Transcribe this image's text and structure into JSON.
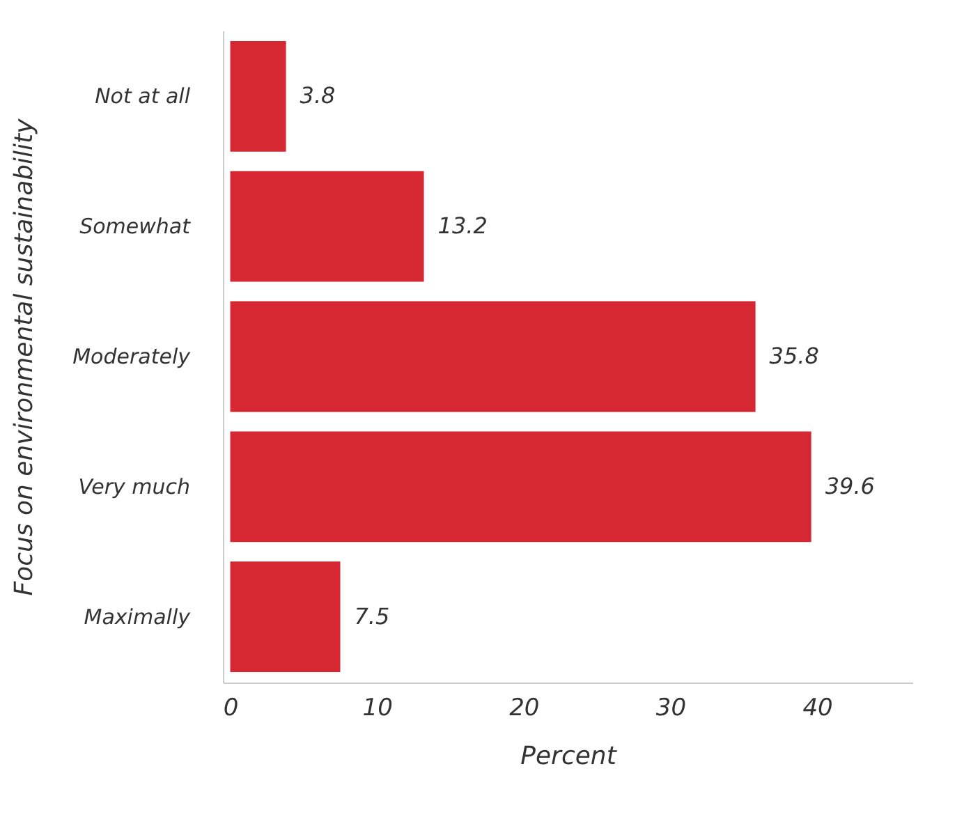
{
  "chart_data": {
    "type": "bar",
    "orientation": "horizontal",
    "ylabel": "Focus on environmental sustainability",
    "xlabel": "Percent",
    "categories": [
      "Not at all",
      "Somewhat",
      "Moderately",
      "Very much",
      "Maximally"
    ],
    "values": [
      3.8,
      13.2,
      35.8,
      39.6,
      7.5
    ],
    "color": "#d52832",
    "xlim": [
      -0.5,
      46.5
    ],
    "xticks": [
      0,
      10,
      20,
      30,
      40
    ],
    "grid": false,
    "data_labels": true
  }
}
